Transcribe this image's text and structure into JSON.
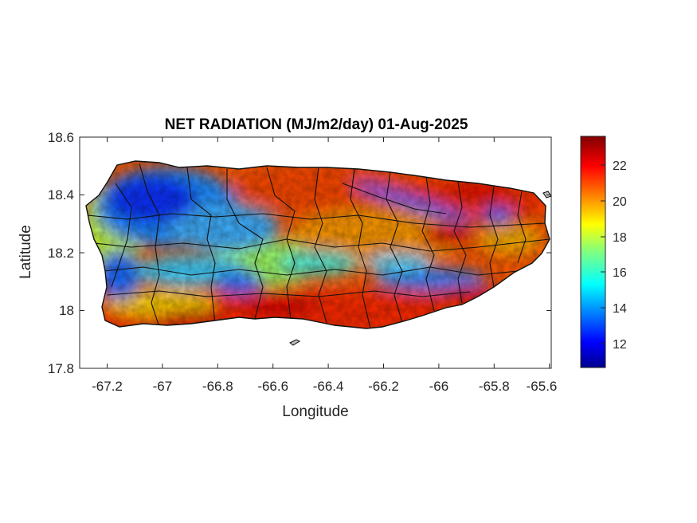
{
  "chart_data": {
    "type": "heatmap",
    "title": "NET RADIATION (MJ/m2/day) 01-Aug-2025",
    "xlabel": "Longitude",
    "ylabel": "Latitude",
    "xlim": [
      -67.3,
      -65.59
    ],
    "ylim": [
      17.8,
      18.6
    ],
    "x_ticks": [
      -67.2,
      -67,
      -66.8,
      -66.6,
      -66.4,
      -66.2,
      -66,
      -65.8,
      -65.6
    ],
    "y_ticks": [
      17.8,
      18,
      18.2,
      18.4,
      18.6
    ],
    "x_tick_labels": [
      "-67.2",
      "-67",
      "-66.8",
      "-66.6",
      "-66.4",
      "-66.2",
      "-66",
      "-65.8",
      "-65.6"
    ],
    "y_tick_labels": [
      "17.8",
      "18",
      "18.2",
      "18.4",
      "18.6"
    ],
    "colorbar": {
      "colormap": "jet",
      "range": [
        10.6,
        23.6
      ],
      "ticks": [
        12,
        14,
        16,
        18,
        20,
        22
      ],
      "tick_labels": [
        "12",
        "14",
        "16",
        "18",
        "20",
        "22"
      ]
    },
    "boundary_color": "#000000",
    "regions": [
      {
        "area": "northwest",
        "approx_value": 12.5
      },
      {
        "area": "west-central interior",
        "approx_value": 13.5
      },
      {
        "area": "west coast",
        "approx_value": 17.5
      },
      {
        "area": "north-central coast",
        "approx_value": 21
      },
      {
        "area": "northeast coast",
        "approx_value": 22.5
      },
      {
        "area": "central mountain band",
        "approx_value": 14
      },
      {
        "area": "east-central band",
        "approx_value": 13
      },
      {
        "area": "south coast",
        "approx_value": 22.5
      },
      {
        "area": "southeast coast",
        "approx_value": 22
      }
    ]
  }
}
